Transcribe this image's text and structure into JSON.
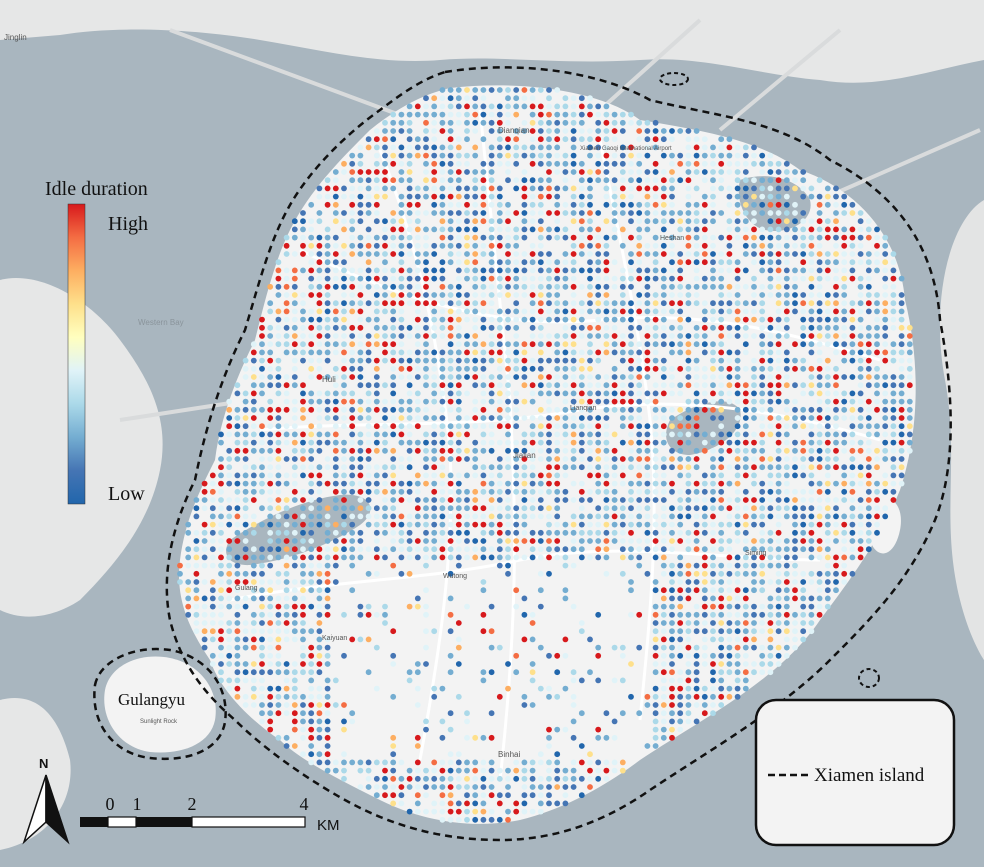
{
  "legend": {
    "title": "Idle duration",
    "high_label": "High",
    "low_label": "Low",
    "gradient_colors": [
      "#d7191c",
      "#f46d43",
      "#fdae61",
      "#fee08b",
      "#ffffbf",
      "#e0f3f8",
      "#abd9e9",
      "#74add1",
      "#4575b4",
      "#2166ac"
    ]
  },
  "island_labels": {
    "gulangyu": "Gulangyu"
  },
  "place_labels": [
    {
      "name": "Dianqian",
      "key": "dianqian"
    },
    {
      "name": "Huli",
      "key": "huli"
    },
    {
      "name": "Jialian",
      "key": "jialian"
    },
    {
      "name": "Binhai",
      "key": "binhai"
    },
    {
      "name": "Western Bay",
      "key": "western_bay"
    },
    {
      "name": "Xiamen Gaoqi International Airport",
      "key": "airport"
    },
    {
      "name": "Sunlight Rock",
      "key": "sunlight"
    },
    {
      "name": "Jinglin",
      "key": "jinglin"
    },
    {
      "name": "Siming",
      "key": "siming"
    },
    {
      "name": "Lianqian",
      "key": "lianqian"
    },
    {
      "name": "Kaiyuan",
      "key": "kaiyuan"
    },
    {
      "name": "Gulang",
      "key": "gulang"
    },
    {
      "name": "Wutong",
      "key": "wutong"
    },
    {
      "name": "Heshan",
      "key": "heshan"
    }
  ],
  "scale_bar": {
    "ticks": [
      "0",
      "1",
      "2",
      "4"
    ],
    "unit": "KM"
  },
  "north_arrow": {
    "label": "N"
  },
  "map_legend_box": {
    "item_label": "Xiamen island"
  },
  "colors": {
    "water": "#a9b6bf",
    "land": "#e9eaea",
    "island_land": "#f4f4f4",
    "road": "#ffffff",
    "boundary": "#111111"
  }
}
